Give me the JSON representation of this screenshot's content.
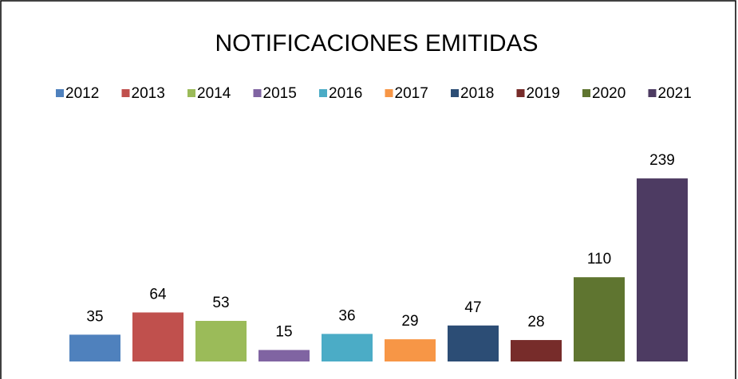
{
  "chart_data": {
    "type": "bar",
    "title": "NOTIFICACIONES EMITIDAS",
    "series": [
      {
        "name": "2012",
        "color": "#4f81bd",
        "values": [
          35
        ]
      },
      {
        "name": "2013",
        "color": "#c0504d",
        "values": [
          64
        ]
      },
      {
        "name": "2014",
        "color": "#9bbb59",
        "values": [
          53
        ]
      },
      {
        "name": "2015",
        "color": "#8064a2",
        "values": [
          15
        ]
      },
      {
        "name": "2016",
        "color": "#4bacc6",
        "values": [
          36
        ]
      },
      {
        "name": "2017",
        "color": "#f79646",
        "values": [
          29
        ]
      },
      {
        "name": "2018",
        "color": "#2c4d75",
        "values": [
          47
        ]
      },
      {
        "name": "2019",
        "color": "#772c2a",
        "values": [
          28
        ]
      },
      {
        "name": "2020",
        "color": "#5f7530",
        "values": [
          110
        ]
      },
      {
        "name": "2021",
        "color": "#4d3b62",
        "values": [
          239
        ]
      }
    ],
    "legend": "top"
  }
}
